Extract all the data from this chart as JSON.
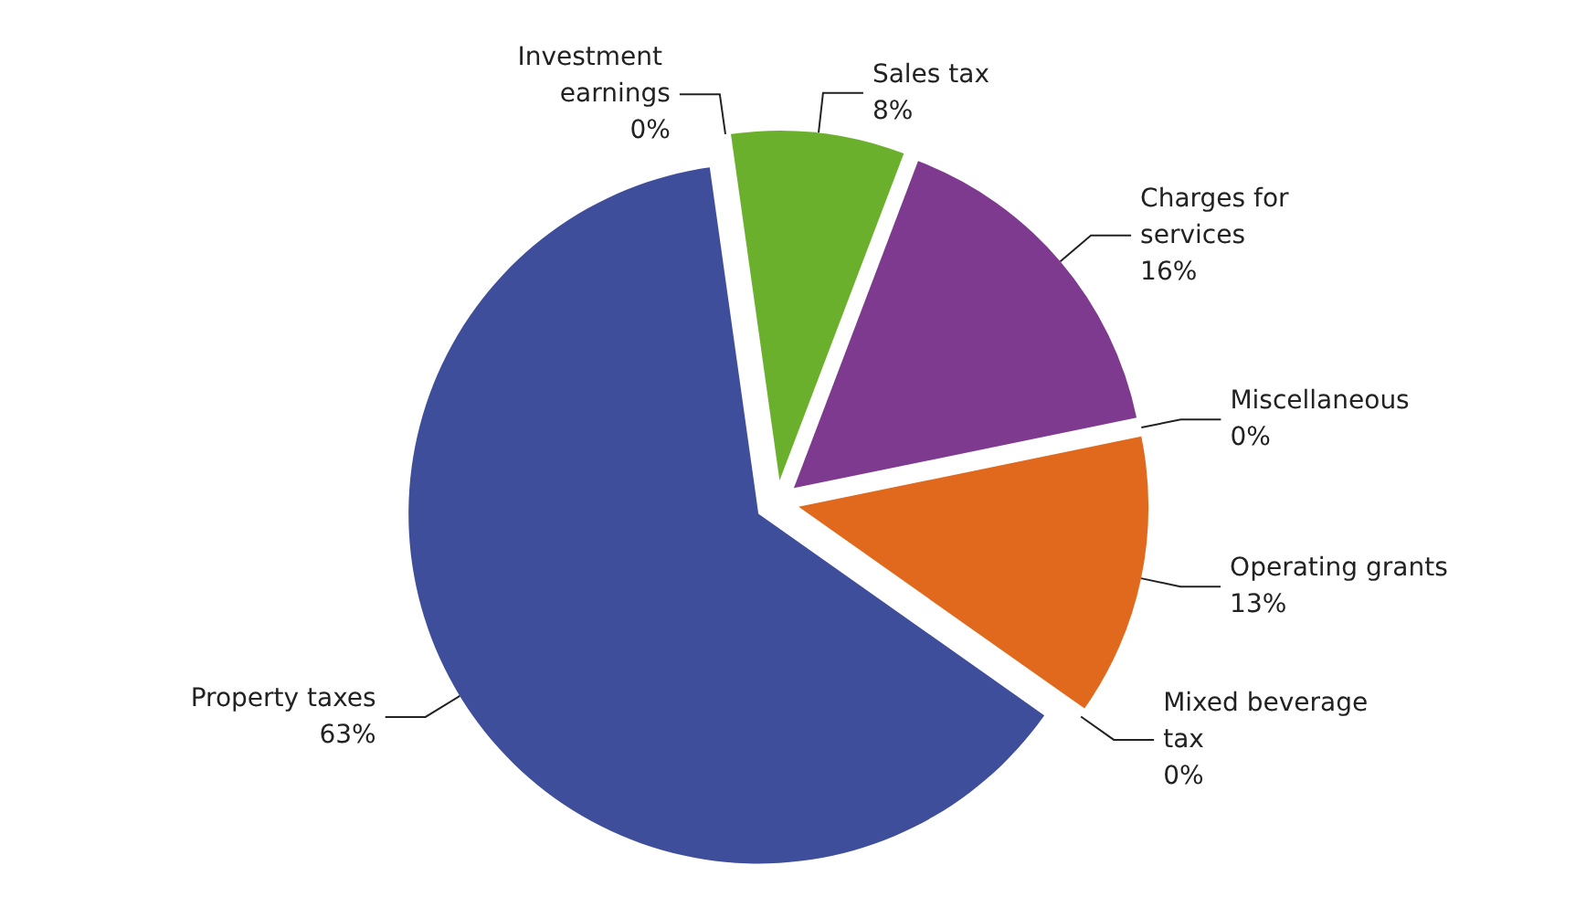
{
  "chart_data": {
    "type": "pie",
    "categories": [
      "Sales tax",
      "Charges for services",
      "Miscellaneous",
      "Operating grants",
      "Mixed beverage tax",
      "Property taxes",
      "Investment earnings"
    ],
    "values": [
      8,
      16,
      0,
      13,
      0,
      63,
      0
    ],
    "value_labels": [
      "8%",
      "16%",
      "0%",
      "13%",
      "0%",
      "63%",
      "0%"
    ],
    "colors": [
      "#6bb02c",
      "#7d3a8f",
      "#4d6e9c",
      "#e0691d",
      "#b8b8b8",
      "#3f4e9b",
      "#8a8a8a"
    ]
  }
}
